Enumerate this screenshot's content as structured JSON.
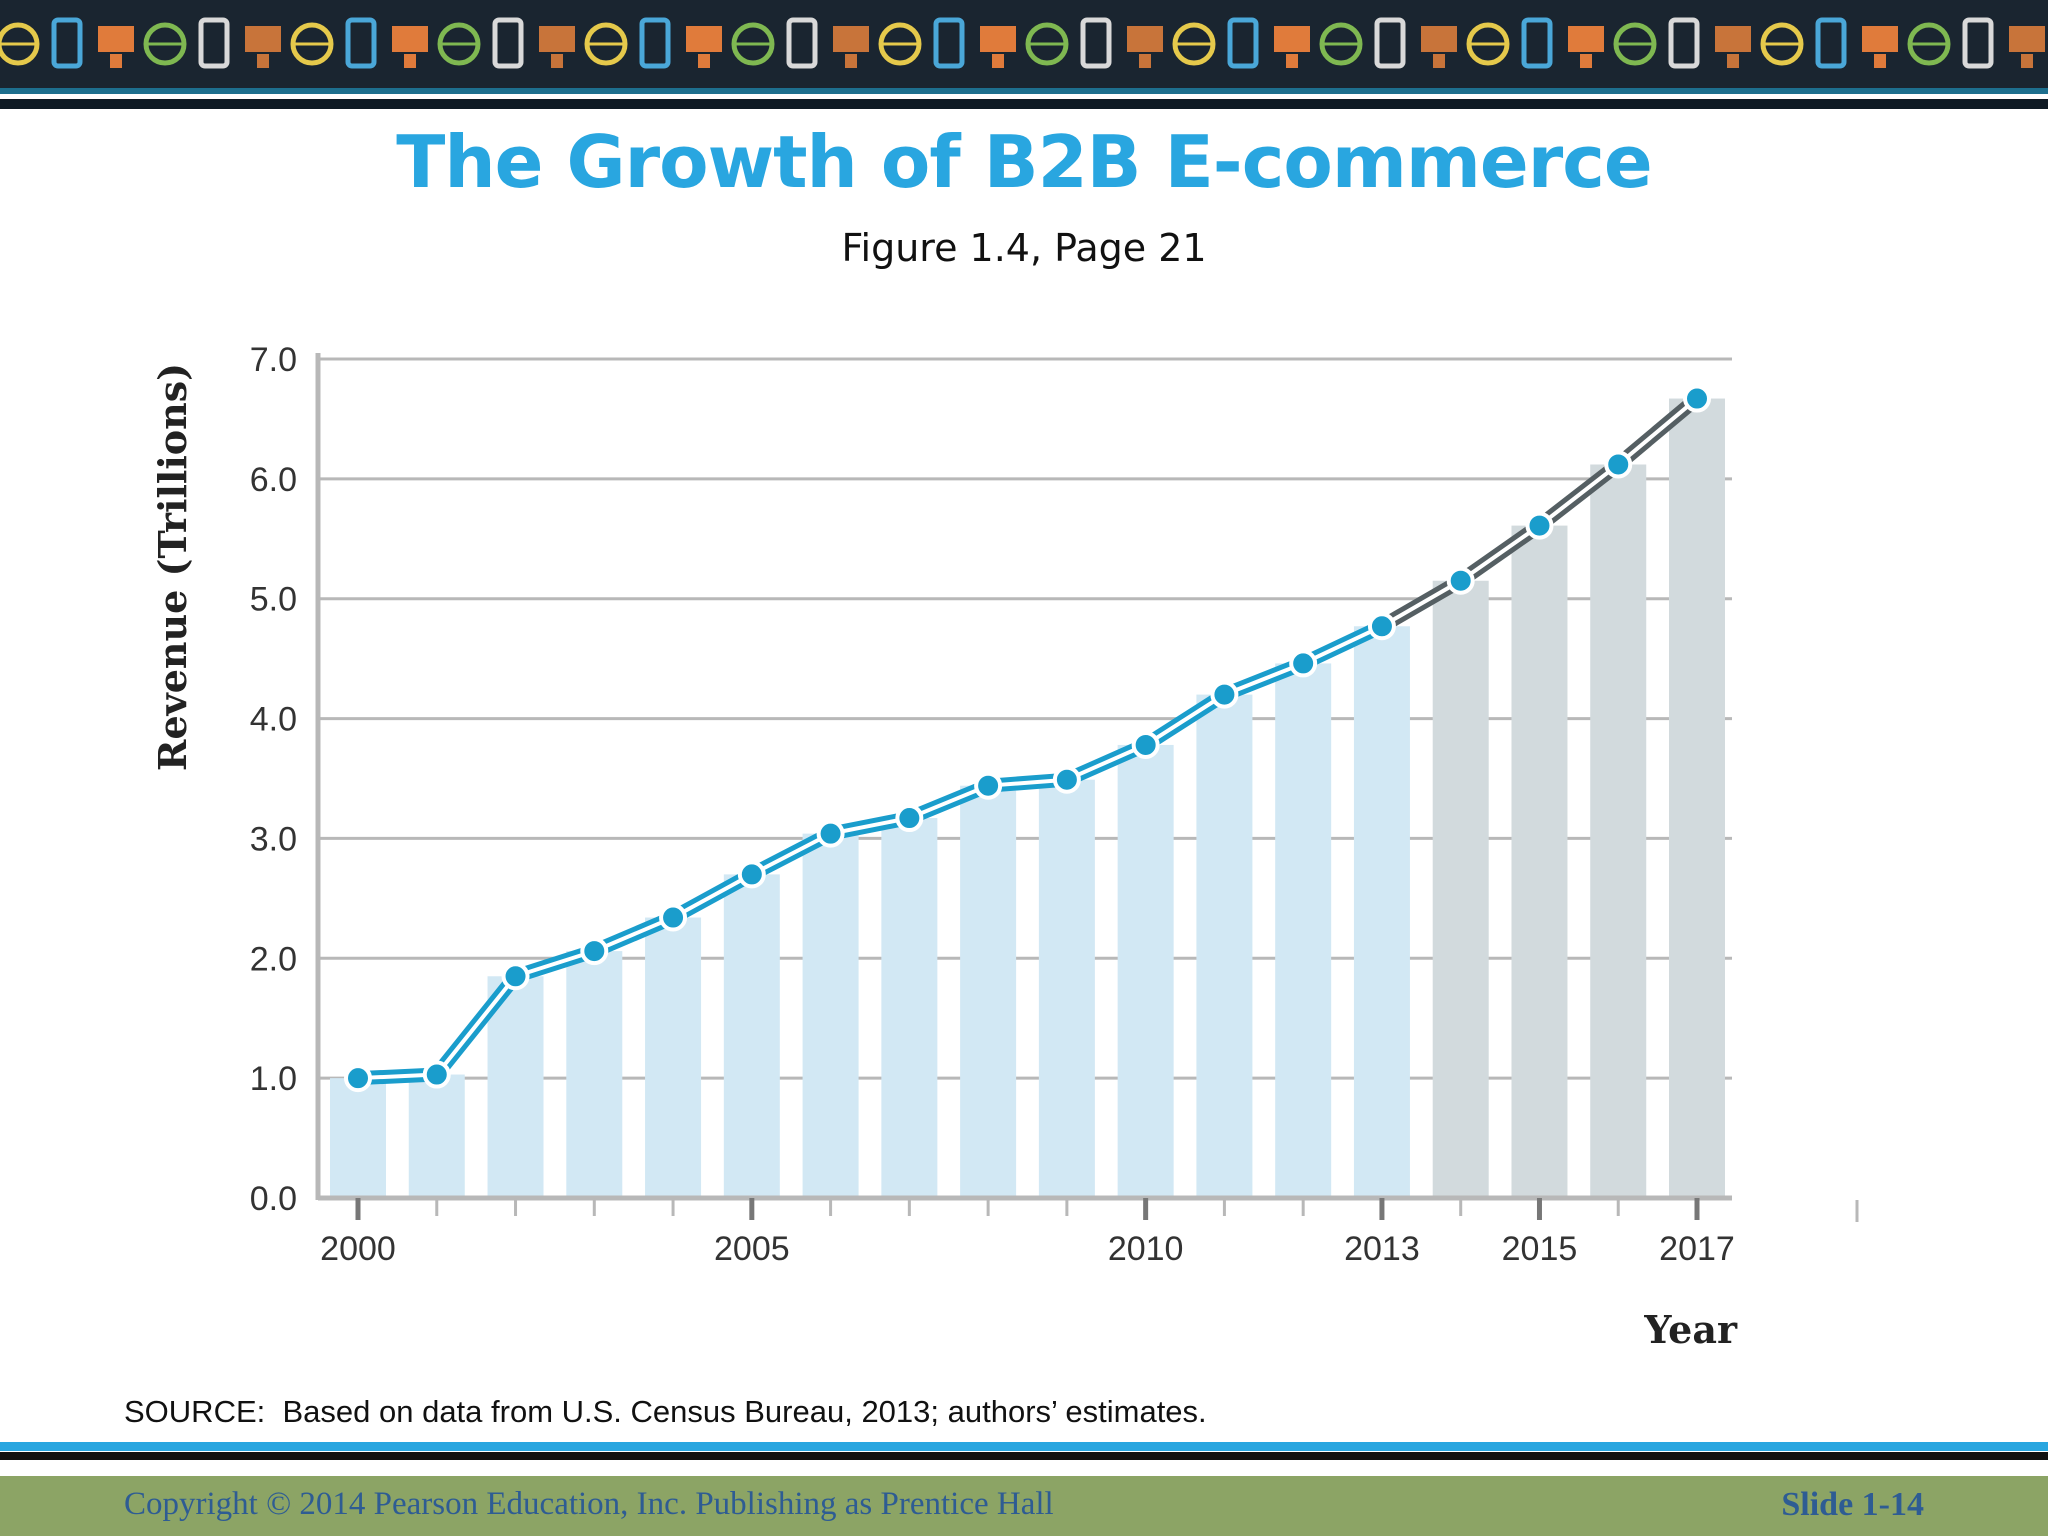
{
  "slide": {
    "title": "The Growth of B2B E-commerce",
    "subtitle": "Figure 1.4, Page 21",
    "source": "SOURCE:  Based on data from U.S. Census Bureau, 2013; authors’ estimates.",
    "copyright": "Copyright © 2014 Pearson Education, Inc. Publishing as Prentice Hall",
    "slide_number": "Slide 1-14"
  },
  "banner_icons": [
    "globe-icon",
    "at-sign-icon",
    "mobile-phone-icon",
    "laptop-icon",
    "airplane-icon",
    "thumbs-up-icon",
    "wifi-icon",
    "sms-icon",
    "home-icon",
    "binders-icon",
    "trophy-icon"
  ],
  "colors": {
    "title": "#29a6e0",
    "bar_actual": "#d2e8f4",
    "bar_estimate": "#d2dadd",
    "line_actual": "#1a9dcc",
    "line_estimate": "#555f63",
    "grid": "#b8b8b8",
    "footer_bg": "#8ca465",
    "footer_text": "#2e5c93"
  },
  "chart_data": {
    "type": "bar",
    "overlay": "line",
    "xlabel": "Year",
    "ylabel": "Revenue (Trillions)",
    "ylim": [
      0,
      7
    ],
    "yticks": [
      "0.0",
      "1.0",
      "2.0",
      "3.0",
      "4.0",
      "5.0",
      "6.0",
      "7.0"
    ],
    "xtick_labels": [
      {
        "year": 2000,
        "label": "2000"
      },
      {
        "year": 2005,
        "label": "2005"
      },
      {
        "year": 2010,
        "label": "2010"
      },
      {
        "year": 2013,
        "label": "2013"
      },
      {
        "year": 2015,
        "label": "2015"
      },
      {
        "year": 2017,
        "label": "2017"
      }
    ],
    "grid": true,
    "x": [
      2000,
      2001,
      2002,
      2003,
      2004,
      2005,
      2006,
      2007,
      2008,
      2009,
      2010,
      2011,
      2012,
      2013,
      2014,
      2015,
      2016,
      2017
    ],
    "values": [
      1.0,
      1.03,
      1.85,
      2.06,
      2.34,
      2.7,
      3.04,
      3.17,
      3.44,
      3.49,
      3.78,
      4.2,
      4.46,
      4.77,
      5.15,
      5.61,
      6.12,
      6.67
    ],
    "estimate_from": 2014
  }
}
